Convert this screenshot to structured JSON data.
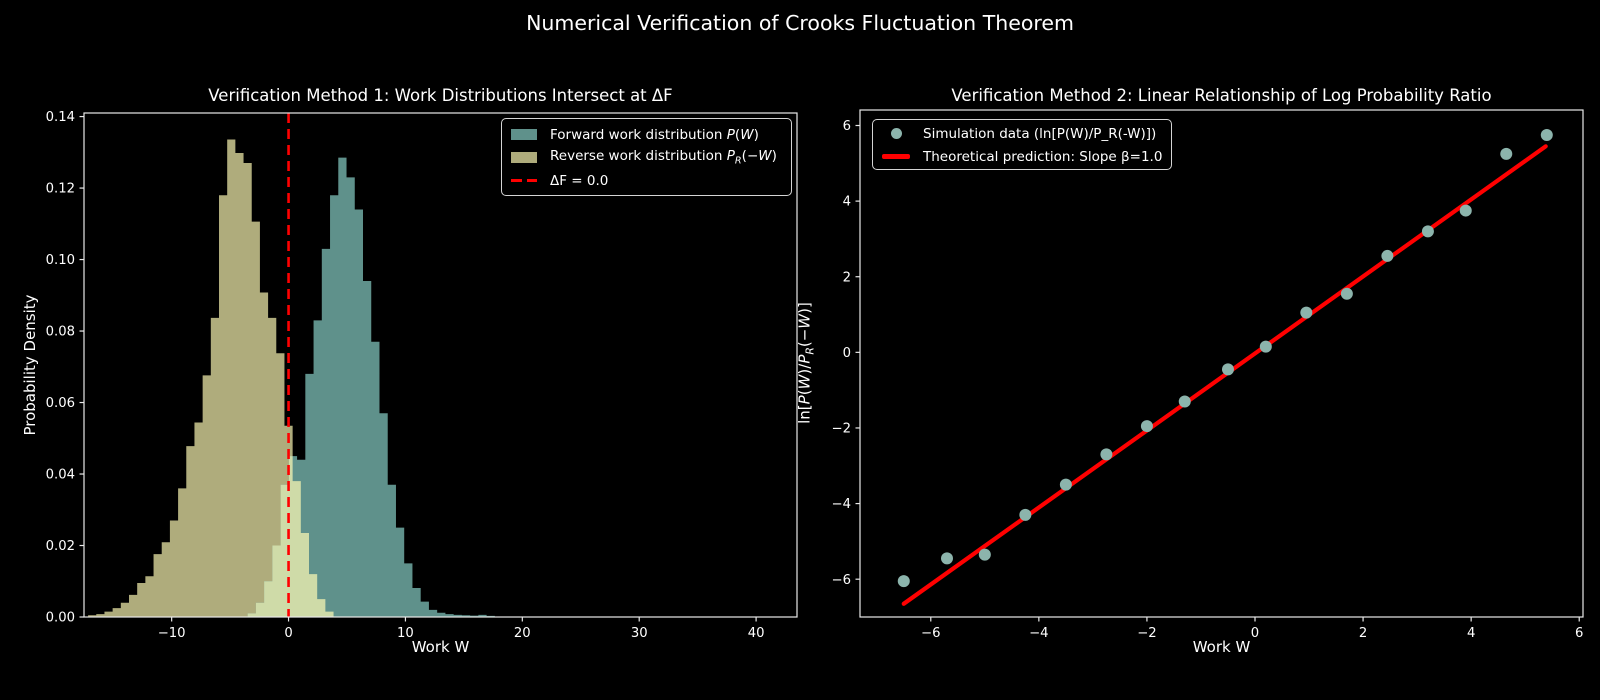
{
  "figure": {
    "title": "Numerical Verification of Crooks Fluctuation Theorem"
  },
  "colors": {
    "background": "#000000",
    "text": "#FFFFFF",
    "frame": "#E8E8E8",
    "forward_hist": "#5F918B",
    "reverse_hist": "#AFAC7C",
    "overlap": "#CFDBA8",
    "scatter_point": "#8CB4AC",
    "red_accent": "#FF0000"
  },
  "left_legend": {
    "forward": {
      "pre": "Forward work distribution ",
      "p": "P",
      "lp": "(",
      "w": "W",
      "rp": ")"
    },
    "reverse": {
      "pre": "Reverse work distribution ",
      "p": "P",
      "sub": "R",
      "lp": "(−",
      "w": "W",
      "rp": ")"
    },
    "vline_label": "ΔF = 0.0"
  },
  "right_legend": {
    "scatter_label": "Simulation data (ln[P(W)/P_R(-W)])",
    "line_label": "Theoretical prediction: Slope β=1.0"
  },
  "chart_data": [
    {
      "type": "bar",
      "subtype": "overlapping-histograms",
      "title": "Verification Method 1: Work Distributions Intersect at ΔF",
      "xlabel": "Work W",
      "ylabel": "Probability Density",
      "xlim": [
        -17.5,
        43.5
      ],
      "ylim": [
        0,
        0.141
      ],
      "xticks": [
        -10,
        0,
        10,
        20,
        30,
        40
      ],
      "xtick_labels": [
        "−10",
        "0",
        "10",
        "20",
        "30",
        "40"
      ],
      "yticks": [
        0.0,
        0.02,
        0.04,
        0.06,
        0.08,
        0.1,
        0.12,
        0.14
      ],
      "ytick_labels": [
        "0.00",
        "0.02",
        "0.04",
        "0.06",
        "0.08",
        "0.10",
        "0.12",
        "0.14"
      ],
      "grid": false,
      "legend_position": "upper right",
      "series": [
        {
          "name": "Reverse work distribution P_R(−W)",
          "color": "#AFAC7C",
          "bin_start": -17.15,
          "bin_width": 0.7,
          "heights": [
            0.0005,
            0.0008,
            0.0015,
            0.0025,
            0.004,
            0.0062,
            0.0095,
            0.0114,
            0.0176,
            0.0209,
            0.027,
            0.036,
            0.0478,
            0.0544,
            0.0676,
            0.0837,
            0.118,
            0.1336,
            0.1298,
            0.127,
            0.1106,
            0.0908,
            0.0837,
            0.0738,
            0.0535,
            0.038,
            0.0235,
            0.012,
            0.005,
            0.0015
          ]
        },
        {
          "name": "Forward work distribution P(W)",
          "color": "#5F918B",
          "bin_start": -3.5,
          "bin_width": 0.705,
          "heights": [
            0.001,
            0.004,
            0.01,
            0.02,
            0.037,
            0.045,
            0.044,
            0.068,
            0.083,
            0.103,
            0.118,
            0.1285,
            0.123,
            0.114,
            0.094,
            0.077,
            0.057,
            0.037,
            0.025,
            0.015,
            0.0081,
            0.0043,
            0.002,
            0.0012,
            0.0008,
            0.0006,
            0.0005,
            0.0004,
            0.0006,
            0.0003
          ]
        }
      ],
      "overlap_color": "#CFDBA8",
      "vline": {
        "x": 0,
        "label": "ΔF = 0.0",
        "color": "#FF0000",
        "style": "dashed"
      }
    },
    {
      "type": "scatter",
      "title": "Verification Method 2: Linear Relationship of Log Probability Ratio",
      "xlabel": "Work W",
      "ylabel": "ln[P(W)/P_R(−W)]",
      "ylabel_parts": [
        "ln[",
        "P",
        "(",
        "W",
        ")/",
        "P",
        "R",
        "(−",
        "W",
        ")]"
      ],
      "xlim": [
        -7.31,
        6.07
      ],
      "ylim": [
        -7.0,
        6.41
      ],
      "xticks": [
        -6,
        -4,
        -2,
        0,
        2,
        4,
        6
      ],
      "xtick_labels": [
        "−6",
        "−4",
        "−2",
        "0",
        "2",
        "4",
        "6"
      ],
      "yticks": [
        -6,
        -4,
        -2,
        0,
        2,
        4,
        6
      ],
      "ytick_labels": [
        "−6",
        "−4",
        "−2",
        "0",
        "2",
        "4",
        "6"
      ],
      "grid": false,
      "legend_position": "upper left",
      "points": {
        "name": "Simulation data (ln[P(W)/P_R(-W)])",
        "color": "#8CB4AC",
        "x": [
          -6.5,
          -5.7,
          -5.0,
          -4.25,
          -3.5,
          -2.75,
          -2.0,
          -1.3,
          -0.5,
          0.2,
          0.95,
          1.7,
          2.45,
          3.2,
          3.9,
          4.65,
          5.4
        ],
        "y": [
          -6.05,
          -5.45,
          -5.35,
          -4.3,
          -3.5,
          -2.7,
          -1.95,
          -1.3,
          -0.45,
          0.15,
          1.05,
          1.55,
          2.55,
          3.2,
          3.75,
          5.25,
          5.75
        ]
      },
      "line": {
        "name": "Theoretical prediction: Slope β=1.0",
        "slope_label": "β=1.0",
        "color": "#FF0000",
        "x1": -6.5,
        "y1": -6.65,
        "x2": 5.38,
        "y2": 5.45
      }
    }
  ]
}
